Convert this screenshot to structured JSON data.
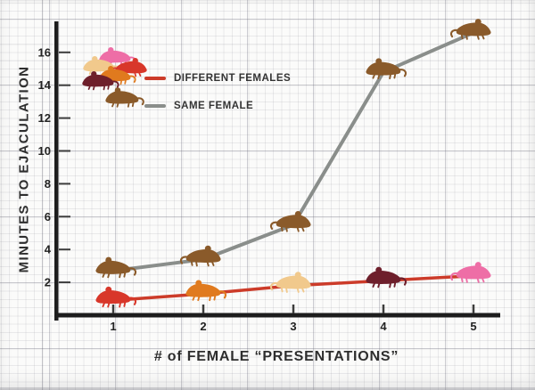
{
  "chart_data": {
    "type": "line",
    "x": [
      1,
      2,
      3,
      4,
      5
    ],
    "xticks": [
      "1",
      "2",
      "3",
      "4",
      "5"
    ],
    "yticks": [
      "2",
      "4",
      "6",
      "8",
      "10",
      "12",
      "14",
      "16"
    ],
    "ylim": [
      0,
      18
    ],
    "xlabel": "# of FEMALE “PRESENTATIONS”",
    "ylabel": "MINUTES TO EJACULATION",
    "grid": true,
    "legend_position": "top-left",
    "series": [
      {
        "name": "DIFFERENT FEMALES",
        "line_color": "#cc3b29",
        "line_width": 3.5,
        "values": [
          0.9,
          1.3,
          1.8,
          2.1,
          2.4
        ],
        "point_icon": "rat-icon",
        "point_colors": [
          "#d8372a",
          "#e07a1e",
          "#f1c98c",
          "#6e1f2b",
          "#ee6ea6"
        ],
        "point_facing": [
          "left",
          "left",
          "right",
          "left",
          "right"
        ]
      },
      {
        "name": "SAME FEMALE",
        "line_color": "#8a8e8b",
        "line_width": 4,
        "values": [
          2.7,
          3.4,
          5.5,
          14.8,
          17.2
        ],
        "point_icon": "rat-icon",
        "point_colors": [
          "#8a5a2a",
          "#8a5a2a",
          "#8a5a2a",
          "#8a5a2a",
          "#8a5a2a"
        ],
        "point_facing": [
          "left",
          "right",
          "right",
          "left",
          "right"
        ]
      }
    ]
  },
  "legend": {
    "items": [
      {
        "label": "DIFFERENT FEMALES",
        "color": "#cc3b29"
      },
      {
        "label": "SAME FEMALE",
        "color": "#8a8e8b"
      }
    ],
    "cluster_icon": "rat-icon",
    "cluster_colors": [
      "#ee6ea6",
      "#f1c98c",
      "#d8372a",
      "#e07a1e",
      "#6e1f2b"
    ],
    "single_icon": "rat-icon",
    "single_color": "#8a5a2a"
  },
  "colors": {
    "axis": "#1d1d1d",
    "tick": "#3c3c3c",
    "text": "#2e2e2e"
  }
}
